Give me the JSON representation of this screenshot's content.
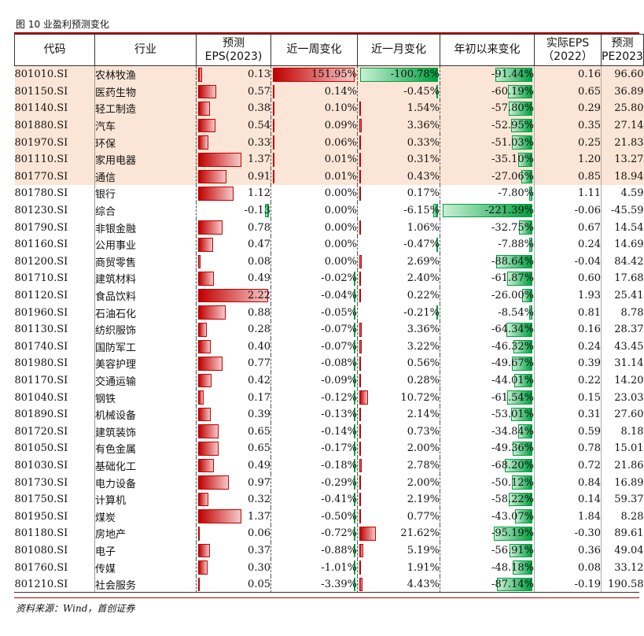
{
  "title": "图 10 业盈利预测变化",
  "source": "资料来源：Wind，首创证券",
  "headers": {
    "code": "代码",
    "industry": "行业",
    "eps_line1": "预测",
    "eps_line2": "EPS(2023)",
    "week": "近一周变化",
    "month": "近一月变化",
    "ytd": "年初以来变化",
    "actual_line1": "实际EPS",
    "actual_line2": "（2022）",
    "pe_line1": "预测",
    "pe_line2": "PE2023"
  },
  "colors": {
    "positive": "#c00000",
    "negative": "#00a040",
    "highlight": "#fbe5d6",
    "rule": "#b00000"
  },
  "rows": [
    {
      "code": "801010.SI",
      "industry": "农林牧渔",
      "eps": "0.13",
      "week": "151.95%",
      "month": "-100.78%",
      "ytd": "-91.44%",
      "actual": "0.16",
      "pe": "96.60",
      "hl": true
    },
    {
      "code": "801150.SI",
      "industry": "医药生物",
      "eps": "0.57",
      "week": "0.14%",
      "month": "-0.45%",
      "ytd": "-60.19%",
      "actual": "0.65",
      "pe": "36.89",
      "hl": true
    },
    {
      "code": "801140.SI",
      "industry": "轻工制造",
      "eps": "0.38",
      "week": "0.10%",
      "month": "1.54%",
      "ytd": "-57.80%",
      "actual": "0.29",
      "pe": "25.80",
      "hl": true
    },
    {
      "code": "801880.SI",
      "industry": "汽车",
      "eps": "0.54",
      "week": "0.09%",
      "month": "3.36%",
      "ytd": "-52.95%",
      "actual": "0.35",
      "pe": "27.14",
      "hl": true
    },
    {
      "code": "801970.SI",
      "industry": "环保",
      "eps": "0.33",
      "week": "0.06%",
      "month": "0.33%",
      "ytd": "-51.03%",
      "actual": "0.25",
      "pe": "21.83",
      "hl": true
    },
    {
      "code": "801110.SI",
      "industry": "家用电器",
      "eps": "1.37",
      "week": "0.01%",
      "month": "0.31%",
      "ytd": "-35.10%",
      "actual": "1.20",
      "pe": "13.27",
      "hl": true
    },
    {
      "code": "801770.SI",
      "industry": "通信",
      "eps": "0.91",
      "week": "0.01%",
      "month": "0.43%",
      "ytd": "-27.06%",
      "actual": "0.85",
      "pe": "18.94",
      "hl": true
    },
    {
      "code": "801780.SI",
      "industry": "银行",
      "eps": "1.12",
      "week": "0.00%",
      "month": "0.17%",
      "ytd": "-7.80%",
      "actual": "1.11",
      "pe": "4.59",
      "hl": false
    },
    {
      "code": "801230.SI",
      "industry": "综合",
      "eps": "-0.13",
      "week": "0.00%",
      "month": "-6.15%",
      "ytd": "-221.39%",
      "actual": "-0.06",
      "pe": "-45.59",
      "hl": false
    },
    {
      "code": "801790.SI",
      "industry": "非银金融",
      "eps": "0.78",
      "week": "0.00%",
      "month": "1.06%",
      "ytd": "-32.75%",
      "actual": "0.67",
      "pe": "14.54",
      "hl": false
    },
    {
      "code": "801160.SI",
      "industry": "公用事业",
      "eps": "0.47",
      "week": "0.00%",
      "month": "-0.47%",
      "ytd": "-7.88%",
      "actual": "0.24",
      "pe": "14.69",
      "hl": false
    },
    {
      "code": "801200.SI",
      "industry": "商贸零售",
      "eps": "0.08",
      "week": "0.00%",
      "month": "2.69%",
      "ytd": "-88.64%",
      "actual": "-0.04",
      "pe": "84.42",
      "hl": false
    },
    {
      "code": "801710.SI",
      "industry": "建筑材料",
      "eps": "0.49",
      "week": "-0.02%",
      "month": "2.40%",
      "ytd": "-61.87%",
      "actual": "0.60",
      "pe": "17.68",
      "hl": false
    },
    {
      "code": "801120.SI",
      "industry": "食品饮料",
      "eps": "2.22",
      "week": "-0.04%",
      "month": "0.22%",
      "ytd": "-26.00%",
      "actual": "1.93",
      "pe": "25.41",
      "hl": false
    },
    {
      "code": "801960.SI",
      "industry": "石油石化",
      "eps": "0.88",
      "week": "-0.05%",
      "month": "-0.21%",
      "ytd": "-8.54%",
      "actual": "0.81",
      "pe": "8.78",
      "hl": false
    },
    {
      "code": "801130.SI",
      "industry": "纺织服饰",
      "eps": "0.28",
      "week": "-0.07%",
      "month": "3.36%",
      "ytd": "-64.34%",
      "actual": "0.16",
      "pe": "28.37",
      "hl": false
    },
    {
      "code": "801740.SI",
      "industry": "国防军工",
      "eps": "0.40",
      "week": "-0.07%",
      "month": "3.22%",
      "ytd": "-46.32%",
      "actual": "0.24",
      "pe": "43.45",
      "hl": false
    },
    {
      "code": "801980.SI",
      "industry": "美容护理",
      "eps": "0.77",
      "week": "-0.08%",
      "month": "0.56%",
      "ytd": "-49.67%",
      "actual": "0.39",
      "pe": "31.14",
      "hl": false
    },
    {
      "code": "801170.SI",
      "industry": "交通运输",
      "eps": "0.42",
      "week": "-0.09%",
      "month": "0.28%",
      "ytd": "-44.01%",
      "actual": "0.22",
      "pe": "14.20",
      "hl": false
    },
    {
      "code": "801040.SI",
      "industry": "钢铁",
      "eps": "0.17",
      "week": "-0.12%",
      "month": "10.72%",
      "ytd": "-61.54%",
      "actual": "0.15",
      "pe": "23.03",
      "hl": false
    },
    {
      "code": "801890.SI",
      "industry": "机械设备",
      "eps": "0.39",
      "week": "-0.13%",
      "month": "2.14%",
      "ytd": "-53.01%",
      "actual": "0.31",
      "pe": "27.60",
      "hl": false
    },
    {
      "code": "801720.SI",
      "industry": "建筑装饰",
      "eps": "0.65",
      "week": "-0.14%",
      "month": "0.73%",
      "ytd": "-34.84%",
      "actual": "0.59",
      "pe": "8.18",
      "hl": false
    },
    {
      "code": "801050.SI",
      "industry": "有色金属",
      "eps": "0.65",
      "week": "-0.17%",
      "month": "2.00%",
      "ytd": "-49.36%",
      "actual": "0.78",
      "pe": "15.01",
      "hl": false
    },
    {
      "code": "801030.SI",
      "industry": "基础化工",
      "eps": "0.49",
      "week": "-0.18%",
      "month": "2.78%",
      "ytd": "-68.20%",
      "actual": "0.72",
      "pe": "21.86",
      "hl": false
    },
    {
      "code": "801730.SI",
      "industry": "电力设备",
      "eps": "0.97",
      "week": "-0.29%",
      "month": "2.00%",
      "ytd": "-50.12%",
      "actual": "0.84",
      "pe": "16.89",
      "hl": false
    },
    {
      "code": "801750.SI",
      "industry": "计算机",
      "eps": "0.32",
      "week": "-0.41%",
      "month": "2.19%",
      "ytd": "-58.22%",
      "actual": "0.14",
      "pe": "59.37",
      "hl": false
    },
    {
      "code": "801950.SI",
      "industry": "煤炭",
      "eps": "1.37",
      "week": "-0.50%",
      "month": "0.77%",
      "ytd": "-43.07%",
      "actual": "1.84",
      "pe": "8.28",
      "hl": false
    },
    {
      "code": "801180.SI",
      "industry": "房地产",
      "eps": "0.06",
      "week": "-0.72%",
      "month": "21.62%",
      "ytd": "-95.19%",
      "actual": "-0.30",
      "pe": "89.61",
      "hl": false
    },
    {
      "code": "801080.SI",
      "industry": "电子",
      "eps": "0.37",
      "week": "-0.88%",
      "month": "5.19%",
      "ytd": "-56.91%",
      "actual": "0.36",
      "pe": "49.04",
      "hl": false
    },
    {
      "code": "801760.SI",
      "industry": "传媒",
      "eps": "0.30",
      "week": "-1.01%",
      "month": "1.91%",
      "ytd": "-48.18%",
      "actual": "0.08",
      "pe": "33.12",
      "hl": false
    },
    {
      "code": "801210.SI",
      "industry": "社会服务",
      "eps": "0.05",
      "week": "-3.39%",
      "month": "4.43%",
      "ytd": "-87.14%",
      "actual": "-0.19",
      "pe": "190.58",
      "hl": false
    }
  ]
}
